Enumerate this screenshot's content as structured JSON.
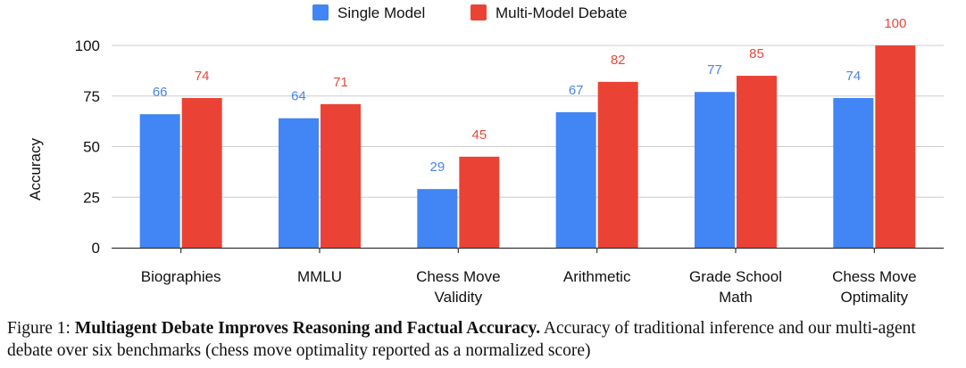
{
  "chart_data": {
    "type": "bar",
    "title": "",
    "xlabel": "",
    "ylabel": "Accuracy",
    "ylim": [
      0,
      100
    ],
    "yticks": [
      0,
      25,
      50,
      75,
      100
    ],
    "grid": true,
    "legend_position": "top-center",
    "categories": [
      [
        "Biographies"
      ],
      [
        "MMLU"
      ],
      [
        "Chess Move",
        "Validity"
      ],
      [
        "Arithmetic"
      ],
      [
        "Grade School",
        "Math"
      ],
      [
        "Chess Move",
        "Optimality"
      ]
    ],
    "series": [
      {
        "name": "Single Model",
        "color": "#4285f4",
        "label_color": "#4a86e8",
        "values": [
          66,
          64,
          29,
          67,
          77,
          74
        ]
      },
      {
        "name": "Multi-Model Debate",
        "color": "#ea4335",
        "label_color": "#e64a3c",
        "values": [
          74,
          71,
          45,
          82,
          85,
          100
        ]
      }
    ]
  },
  "caption": {
    "prefix": "Figure 1: ",
    "bold": "Multiagent Debate Improves Reasoning and Factual Accuracy.",
    "rest": " Accuracy of traditional inference and our multi-agent debate over six benchmarks (chess move optimality reported as a normalized score)"
  }
}
